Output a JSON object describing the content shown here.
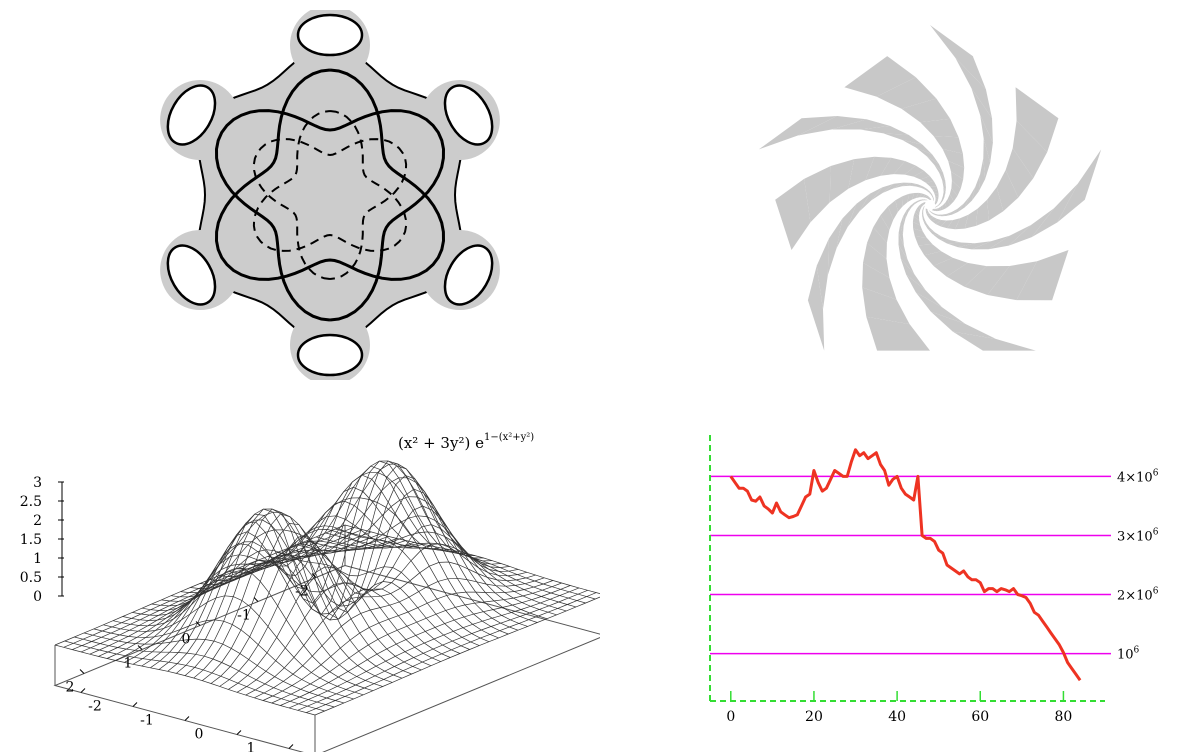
{
  "colors": {
    "surface_fill": "#cccccc",
    "spiral_fill": "#c8c8c8",
    "grid_line": "#ee00ee",
    "axis": "#33dd33",
    "series": "#ee3322"
  },
  "chart_data": [
    {
      "type": "other",
      "title": "",
      "handles": 6
    },
    {
      "type": "other",
      "title": "",
      "sides": 5
    },
    {
      "type": "other",
      "title": "(x^2+3y^2) e^{1-(x^2+y^2)}",
      "title_main": "(x² + 3y²) e",
      "title_sup": "1−(x²+y²)",
      "z_ticks": [
        "3",
        "2.5",
        "2",
        "1.5",
        "1",
        "0.5",
        "0"
      ],
      "x_ticks": [
        "-2",
        "-1",
        "0",
        "1",
        "2"
      ],
      "y_ticks": [
        "-2",
        "-1",
        "0",
        "1",
        "2"
      ],
      "xlim": [
        -2.5,
        2.5
      ],
      "ylim": [
        -2.5,
        2.5
      ],
      "zlim": [
        0,
        3
      ]
    },
    {
      "type": "line",
      "title": "",
      "xlim": [
        -5,
        90
      ],
      "ylim": [
        300000,
        4700000
      ],
      "x_ticks": [
        "0",
        "20",
        "40",
        "60",
        "80"
      ],
      "y_ticks": [
        {
          "value": 1000000,
          "label_base": "10",
          "label_exp": "6",
          "label_mult": ""
        },
        {
          "value": 2000000,
          "label_base": "10",
          "label_exp": "6",
          "label_mult": "2×"
        },
        {
          "value": 3000000,
          "label_base": "10",
          "label_exp": "6",
          "label_mult": "3×"
        },
        {
          "value": 4000000,
          "label_base": "10",
          "label_exp": "6",
          "label_mult": "4×"
        }
      ],
      "grid": true,
      "series": [
        {
          "x": [
            0,
            1,
            2,
            3,
            4,
            5,
            6,
            7,
            8,
            9,
            10,
            11,
            12,
            13,
            14,
            15,
            16,
            17,
            18,
            19,
            20,
            21,
            22,
            23,
            24,
            25,
            26,
            27,
            28,
            29,
            30,
            31,
            32,
            33,
            34,
            35,
            36,
            37,
            38,
            39,
            40,
            41,
            42,
            43,
            44,
            45,
            46,
            47,
            48,
            49,
            50,
            51,
            52,
            53,
            54,
            55,
            56,
            57,
            58,
            59,
            60,
            61,
            62,
            63,
            64,
            65,
            66,
            67,
            68,
            69,
            70,
            71,
            72,
            73,
            74,
            75,
            76,
            77,
            78,
            79,
            80,
            81,
            82,
            83,
            84
          ],
          "y": [
            4000000,
            3900000,
            3800000,
            3800000,
            3750000,
            3600000,
            3580000,
            3650000,
            3500000,
            3450000,
            3380000,
            3550000,
            3400000,
            3350000,
            3300000,
            3320000,
            3350000,
            3500000,
            3650000,
            3700000,
            4100000,
            3900000,
            3750000,
            3800000,
            3950000,
            4100000,
            4050000,
            4000000,
            4000000,
            4250000,
            4450000,
            4350000,
            4400000,
            4300000,
            4350000,
            4400000,
            4200000,
            4100000,
            3850000,
            3950000,
            4000000,
            3800000,
            3700000,
            3650000,
            3600000,
            4000000,
            3000000,
            2950000,
            2950000,
            2900000,
            2750000,
            2700000,
            2500000,
            2450000,
            2400000,
            2350000,
            2400000,
            2300000,
            2250000,
            2250000,
            2200000,
            2050000,
            2100000,
            2100000,
            2050000,
            2100000,
            2080000,
            2050000,
            2100000,
            2000000,
            1980000,
            1950000,
            1850000,
            1700000,
            1650000,
            1550000,
            1450000,
            1350000,
            1250000,
            1150000,
            1020000,
            850000,
            750000,
            650000,
            550000
          ]
        }
      ]
    }
  ]
}
